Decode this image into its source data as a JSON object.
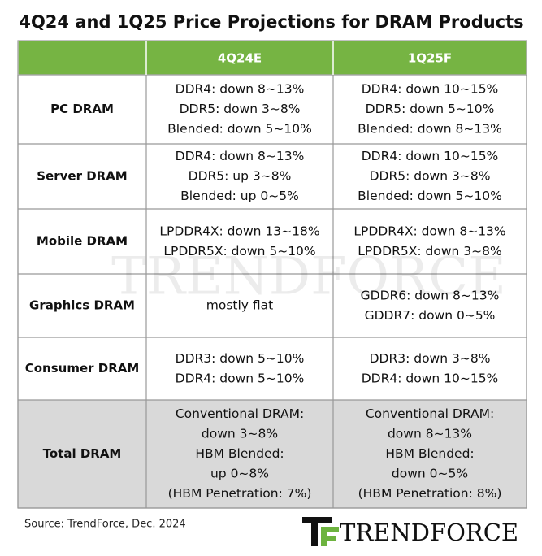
{
  "title": "4Q24 and 1Q25 Price Projections  for DRAM Products",
  "table": {
    "header": [
      "4Q24E",
      "1Q25F"
    ],
    "rows": [
      {
        "label": "PC DRAM",
        "cells": [
          [
            "DDR4: down 8~13%",
            "DDR5: down 3~8%",
            "Blended: down 5~10%"
          ],
          [
            "DDR4: down 10~15%",
            "DDR5: down 5~10%",
            "Blended: down 8~13%"
          ]
        ]
      },
      {
        "label": "Server DRAM",
        "cells": [
          [
            "DDR4: down 8~13%",
            "DDR5: up 3~8%",
            "Blended: up 0~5%"
          ],
          [
            "DDR4: down 10~15%",
            "DDR5: down 3~8%",
            "Blended: down 5~10%"
          ]
        ]
      },
      {
        "label": "Mobile DRAM",
        "cells": [
          [
            "LPDDR4X: down 13~18%",
            "LPDDR5X: down 5~10%"
          ],
          [
            "LPDDR4X: down 8~13%",
            "LPDDR5X: down 3~8%"
          ]
        ]
      },
      {
        "label": "Graphics DRAM",
        "cells": [
          [
            "mostly flat"
          ],
          [
            "GDDR6: down 8~13%",
            "GDDR7: down 0~5%"
          ]
        ]
      },
      {
        "label": "Consumer DRAM",
        "cells": [
          [
            "DDR3: down 5~10%",
            "DDR4: down 5~10%"
          ],
          [
            "DDR3: down 3~8%",
            "DDR4: down 10~15%"
          ]
        ]
      },
      {
        "label": "Total DRAM",
        "cells": [
          [
            "Conventional DRAM:",
            "down 3~8%",
            "HBM Blended:",
            "up 0~8%",
            "(HBM Penetration: 7%)"
          ],
          [
            "Conventional DRAM:",
            "down 8~13%",
            "HBM Blended:",
            "down 0~5%",
            "(HBM Penetration: 8%)"
          ]
        ]
      }
    ]
  },
  "watermark": "TRENDFORCE",
  "source": "Source: TrendForce, Dec. 2024",
  "logo": "TRENDFORCE"
}
